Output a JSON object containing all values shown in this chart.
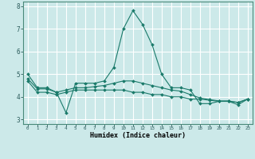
{
  "xlabel": "Humidex (Indice chaleur)",
  "bg_color": "#cce9e9",
  "grid_color": "#ffffff",
  "line_color": "#1a7a6a",
  "x_values": [
    0,
    1,
    2,
    3,
    4,
    5,
    6,
    7,
    8,
    9,
    10,
    11,
    12,
    13,
    14,
    15,
    16,
    17,
    18,
    19,
    20,
    21,
    22,
    23
  ],
  "line1": [
    5.0,
    4.4,
    4.4,
    4.2,
    3.3,
    4.6,
    4.6,
    4.6,
    4.7,
    5.3,
    7.0,
    7.8,
    7.2,
    6.3,
    5.0,
    4.4,
    4.4,
    4.3,
    3.7,
    3.7,
    3.8,
    3.8,
    3.65,
    3.9
  ],
  "line2": [
    4.7,
    4.2,
    4.2,
    4.1,
    4.2,
    4.3,
    4.3,
    4.3,
    4.3,
    4.3,
    4.3,
    4.2,
    4.2,
    4.1,
    4.1,
    4.0,
    4.0,
    3.9,
    3.9,
    3.85,
    3.8,
    3.8,
    3.75,
    3.9
  ],
  "line3": [
    4.8,
    4.35,
    4.35,
    4.2,
    4.3,
    4.4,
    4.4,
    4.45,
    4.5,
    4.6,
    4.7,
    4.7,
    4.6,
    4.5,
    4.4,
    4.3,
    4.25,
    4.1,
    3.95,
    3.88,
    3.82,
    3.82,
    3.75,
    3.9
  ],
  "ylim": [
    2.8,
    8.2
  ],
  "xlim": [
    -0.5,
    23.5
  ],
  "yticks": [
    3,
    4,
    5,
    6,
    7,
    8
  ],
  "xticks": [
    0,
    1,
    2,
    3,
    4,
    5,
    6,
    7,
    8,
    9,
    10,
    11,
    12,
    13,
    14,
    15,
    16,
    17,
    18,
    19,
    20,
    21,
    22,
    23
  ]
}
